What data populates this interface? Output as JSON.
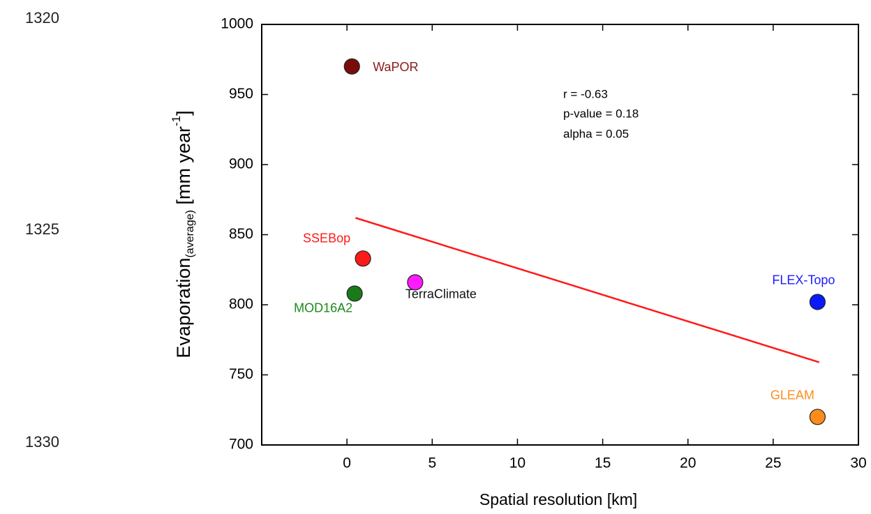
{
  "line_numbers": [
    "1320",
    "1325",
    "1330"
  ],
  "chart_data": {
    "type": "scatter",
    "x_label": "Spatial resolution [km]",
    "y_label": {
      "main": "Evaporation",
      "sub": "(average)",
      "unit": " [mm year",
      "sup": "-1",
      "close": "]"
    },
    "annotations": [
      "r = -0.63",
      "p-value = 0.18",
      "alpha = 0.05"
    ],
    "series": [
      {
        "name": "WaPOR",
        "color": "#7b0c0c",
        "label_color": "#8b1a1a",
        "x": [
          0.29
        ],
        "values": [
          970
        ]
      },
      {
        "name": "SSEBop",
        "color": "#ff1a1a",
        "label_color": "#ff1a1a",
        "x": [
          0.94
        ],
        "values": [
          833
        ]
      },
      {
        "name": "MOD16A2",
        "color": "#1a7a1a",
        "label_color": "#1a8a1a",
        "x": [
          0.45
        ],
        "values": [
          808
        ]
      },
      {
        "name": "TerraClimate",
        "color": "#ff1aff",
        "label_color": "#111111",
        "x": [
          4.0
        ],
        "values": [
          816
        ]
      },
      {
        "name": "FLEX-Topo",
        "color": "#0a1aff",
        "label_color": "#1a1aff",
        "x": [
          27.6
        ],
        "values": [
          802
        ]
      },
      {
        "name": "GLEAM",
        "color": "#ff8c1a",
        "label_color": "#ff8c1a",
        "x": [
          27.6
        ],
        "values": [
          720
        ]
      }
    ],
    "trend": {
      "color": "#ff1a1a",
      "x": [
        0.5,
        27.7
      ],
      "values": [
        862,
        759
      ]
    },
    "xlim": [
      -5,
      30
    ],
    "xticks": [
      0,
      5,
      10,
      15,
      20,
      25,
      30
    ],
    "ylim": [
      700,
      1000
    ],
    "yticks": [
      700,
      750,
      800,
      850,
      900,
      950,
      1000
    ]
  }
}
